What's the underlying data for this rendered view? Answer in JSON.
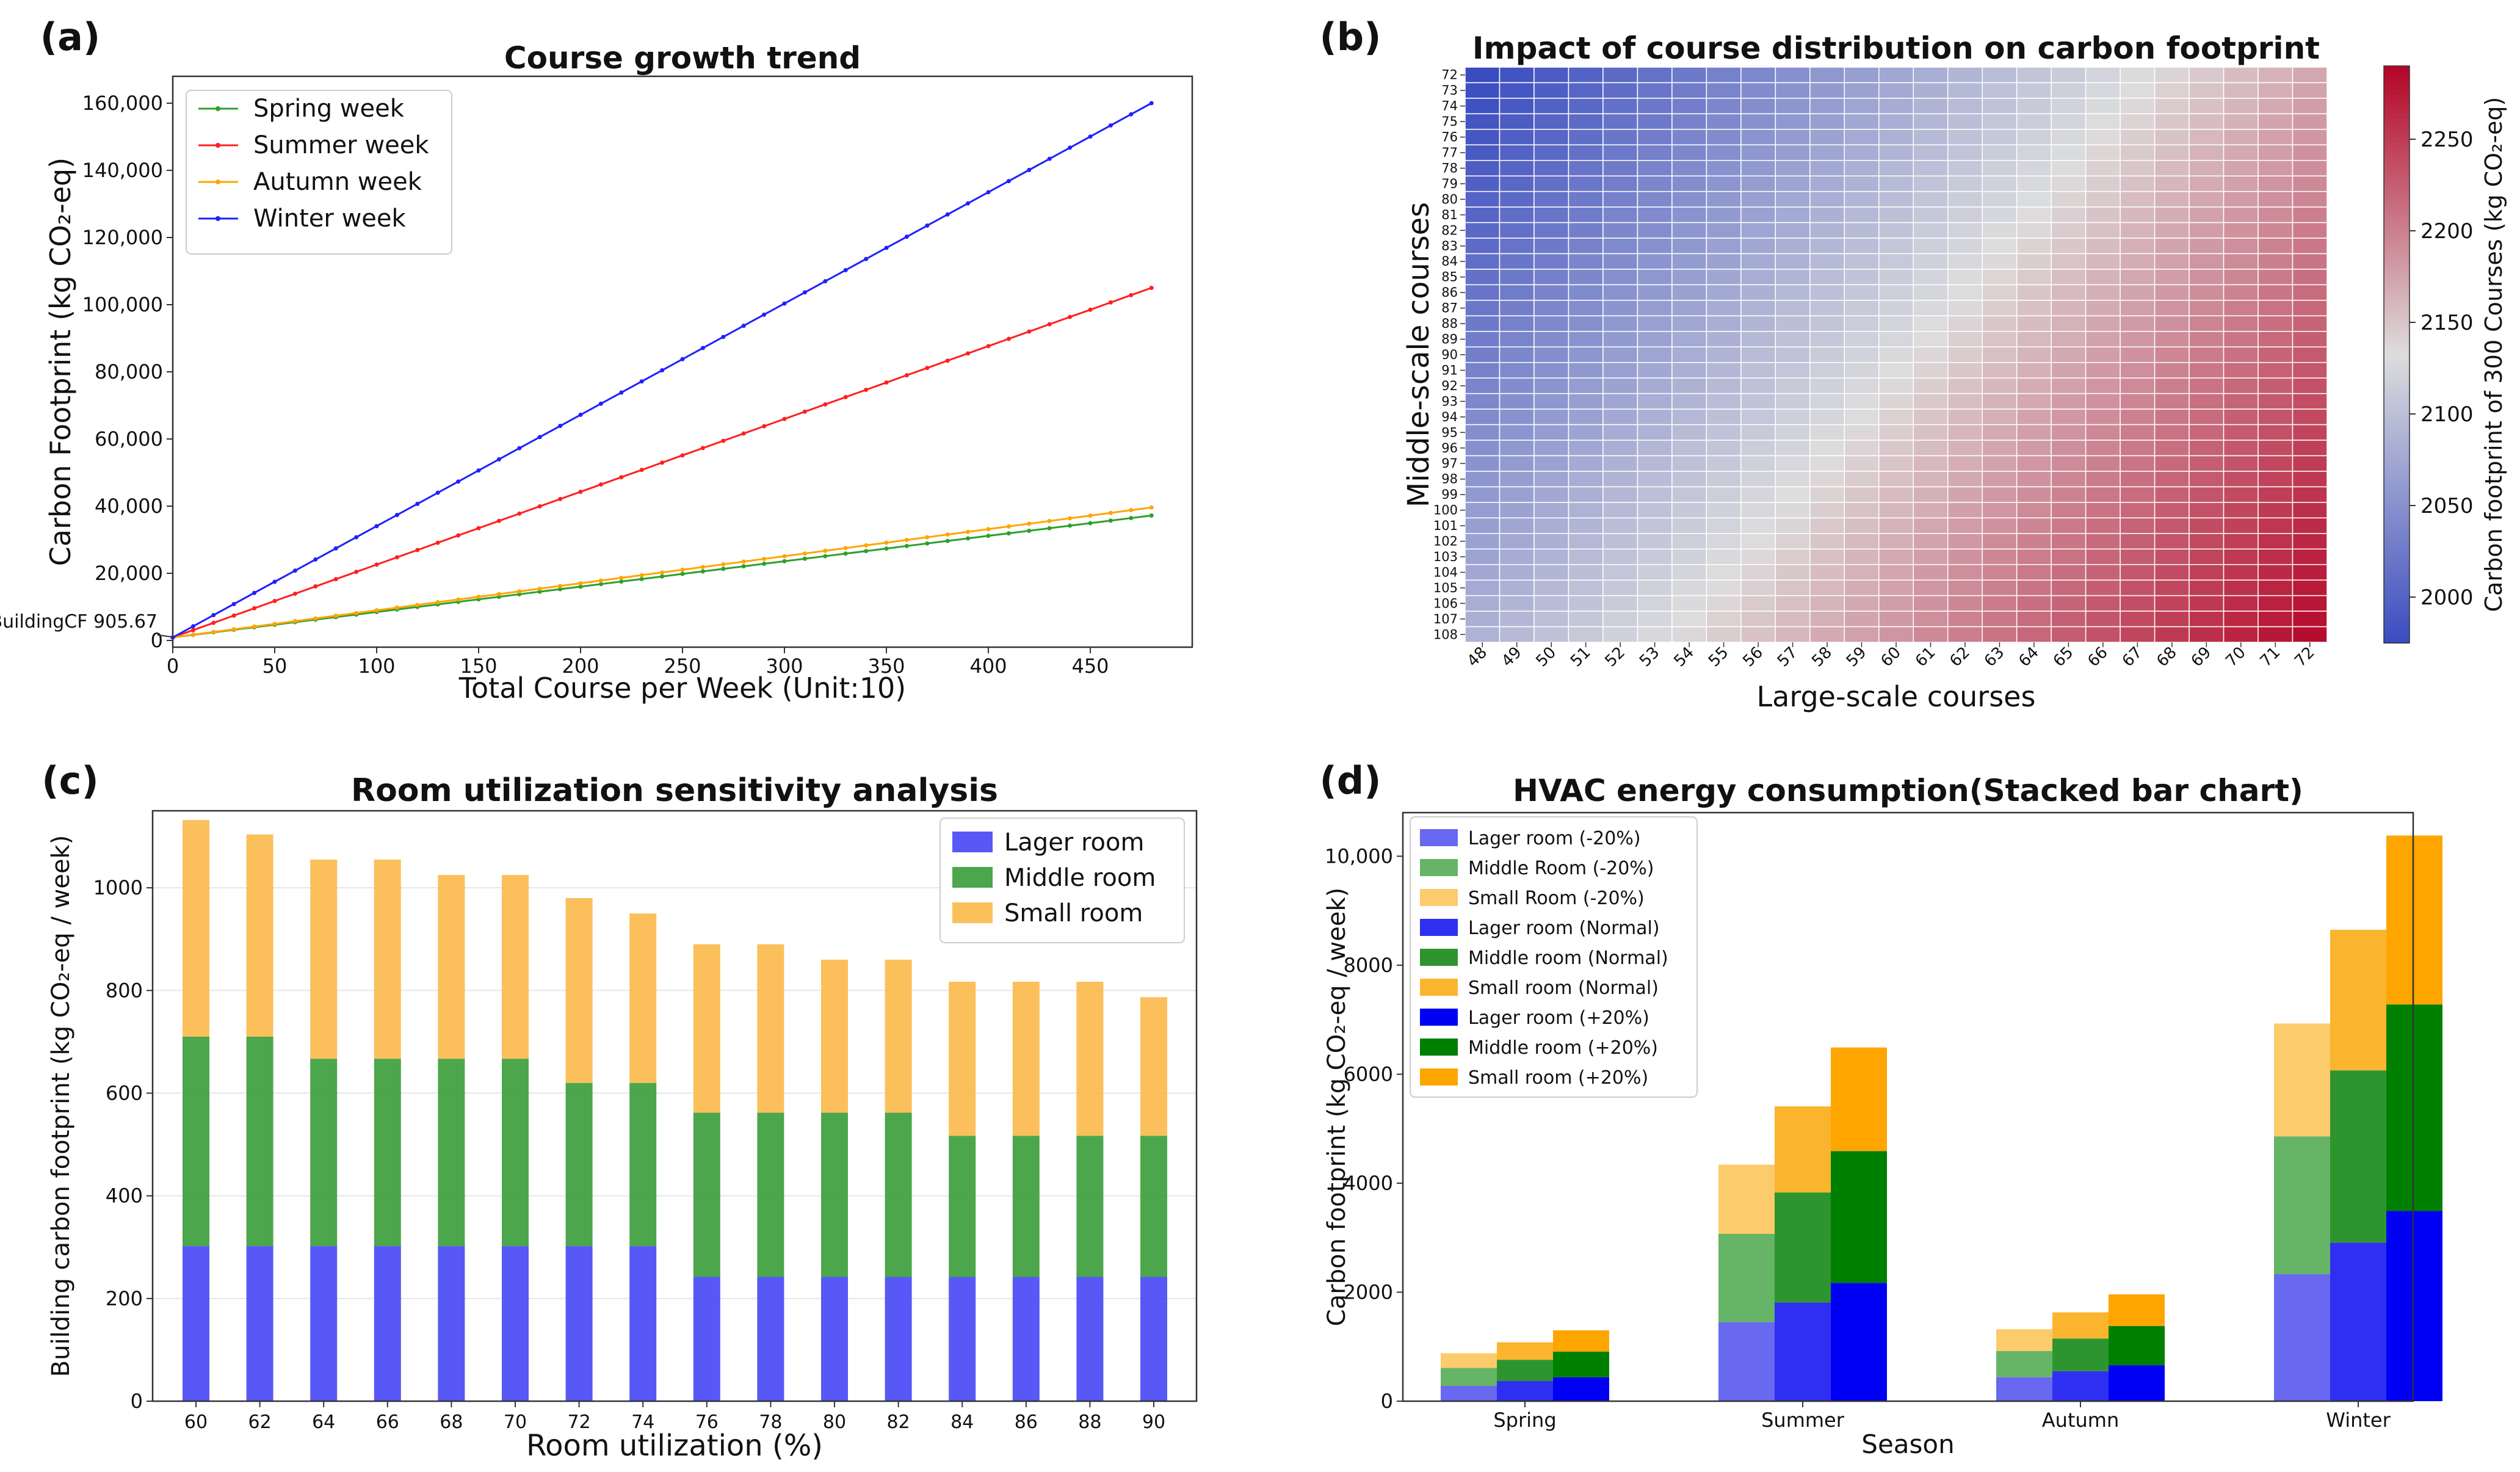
{
  "panels": {
    "a": {
      "letter": "(a)"
    },
    "b": {
      "letter": "(b)"
    },
    "c": {
      "letter": "(c)"
    },
    "d": {
      "letter": "(d)"
    }
  },
  "chart_data": [
    {
      "id": "a",
      "type": "line",
      "title": "Course growth trend",
      "xlabel": "Total Course per Week (Unit:10)",
      "ylabel": "Carbon Footprint (kg CO₂-eq)",
      "xlim": [
        0,
        500
      ],
      "ylim": [
        -2000,
        168000
      ],
      "xticks": [
        0,
        50,
        100,
        150,
        200,
        250,
        300,
        350,
        400,
        450
      ],
      "yticks": [
        0,
        20000,
        40000,
        60000,
        80000,
        100000,
        120000,
        140000,
        160000
      ],
      "ytick_labels": [
        "0",
        "20,000",
        "40,000",
        "60,000",
        "80,000",
        "100,000",
        "120,000",
        "140,000",
        "160,000"
      ],
      "x_start": 0,
      "x_end": 480,
      "x_step": 10,
      "legend_position": "top-left",
      "series": [
        {
          "name": "Spring week",
          "color": "#2ca02c",
          "start": 905.67,
          "end": 37200
        },
        {
          "name": "Summer week",
          "color": "#ff2020",
          "start": 905.67,
          "end": 105000
        },
        {
          "name": "Autumn week",
          "color": "#ffa500",
          "start": 905.67,
          "end": 39600
        },
        {
          "name": "Winter week",
          "color": "#2020ff",
          "start": 905.67,
          "end": 160000
        }
      ],
      "annotation": {
        "text": "BuildingCF 905.67",
        "x": 0,
        "y": 905.67
      }
    },
    {
      "id": "b",
      "type": "heatmap",
      "title": "Impact of course distribution on carbon footprint",
      "xlabel": "Large-scale courses",
      "ylabel": "Middle-scale courses",
      "x_values": [
        48,
        49,
        50,
        51,
        52,
        53,
        54,
        55,
        56,
        57,
        58,
        59,
        60,
        61,
        62,
        63,
        64,
        65,
        66,
        67,
        68,
        69,
        70,
        71,
        72
      ],
      "y_values": [
        72,
        73,
        74,
        75,
        76,
        77,
        78,
        79,
        80,
        81,
        82,
        83,
        84,
        85,
        86,
        87,
        88,
        89,
        90,
        91,
        92,
        93,
        94,
        95,
        96,
        97,
        98,
        99,
        100,
        101,
        102,
        103,
        104,
        105,
        106,
        107,
        108
      ],
      "value_model": {
        "base": 1975,
        "per_large": 8.2,
        "per_middle": 3.1
      },
      "colorbar": {
        "label": "Carbon footprint of 300 Courses (kg CO₂-eq)",
        "min": 1975,
        "max": 2290,
        "ticks": [
          2000,
          2050,
          2100,
          2150,
          2200,
          2250
        ]
      }
    },
    {
      "id": "c",
      "type": "bar",
      "stacked": true,
      "title": "Room utilization sensitivity analysis",
      "xlabel": "Room utilization (%)",
      "ylabel": "Building carbon footprint (kg CO₂-eq / week)",
      "ylim": [
        0,
        1150
      ],
      "yticks": [
        0,
        200,
        400,
        600,
        800,
        1000
      ],
      "categories": [
        "60",
        "62",
        "64",
        "66",
        "68",
        "70",
        "72",
        "74",
        "76",
        "78",
        "80",
        "82",
        "84",
        "86",
        "88",
        "90"
      ],
      "legend_position": "top-right",
      "series": [
        {
          "name": "Lager room",
          "color": "#4a4af5",
          "values": [
            302,
            302,
            302,
            302,
            302,
            302,
            302,
            302,
            242,
            242,
            242,
            242,
            242,
            242,
            242,
            242
          ]
        },
        {
          "name": "Middle room",
          "color": "#3d9e3d",
          "values": [
            408,
            408,
            365,
            365,
            365,
            365,
            318,
            318,
            320,
            320,
            320,
            320,
            275,
            275,
            275,
            275
          ]
        },
        {
          "name": "Small room",
          "color": "#fbbb4d",
          "values": [
            422,
            394,
            388,
            388,
            358,
            358,
            360,
            330,
            328,
            328,
            298,
            298,
            300,
            300,
            300,
            270
          ]
        }
      ]
    },
    {
      "id": "d",
      "type": "bar",
      "stacked": true,
      "grouped": true,
      "title": "HVAC energy consumption(Stacked bar chart)",
      "xlabel": "Season",
      "ylabel": "Carbon footprint (kg CO₂-eq / week)",
      "ylim": [
        0,
        10800
      ],
      "yticks": [
        0,
        2000,
        4000,
        6000,
        8000,
        10000
      ],
      "ytick_labels": [
        "0",
        "2000",
        "4000",
        "6000",
        "8000",
        "10,000"
      ],
      "categories": [
        "Spring",
        "Summer",
        "Autumn",
        "Winter"
      ],
      "groups": [
        "-20%",
        "Normal",
        "+20%"
      ],
      "legend_position": "top-left",
      "legend": [
        {
          "name": "Lager room (-20%)",
          "color": "#6868f0"
        },
        {
          "name": "Middle Room (-20%)",
          "color": "#66b466"
        },
        {
          "name": "Small Room (-20%)",
          "color": "#fccb6c"
        },
        {
          "name": "Lager room (Normal)",
          "color": "#2f2ff2"
        },
        {
          "name": "Middle room (Normal)",
          "color": "#2e952e"
        },
        {
          "name": "Small room (Normal)",
          "color": "#fbb42e"
        },
        {
          "name": "Lager room (+20%)",
          "color": "#0000f5"
        },
        {
          "name": "Middle room (+20%)",
          "color": "#008000"
        },
        {
          "name": "Small room (+20%)",
          "color": "#ffa500"
        }
      ],
      "series": [
        {
          "name": "Lager room (-20%)",
          "group": 0,
          "values": [
            280,
            1450,
            440,
            2330
          ]
        },
        {
          "name": "Middle Room (-20%)",
          "group": 0,
          "values": [
            330,
            1620,
            480,
            2530
          ]
        },
        {
          "name": "Small Room (-20%)",
          "group": 0,
          "values": [
            270,
            1270,
            400,
            2070
          ]
        },
        {
          "name": "Lager room (Normal)",
          "group": 1,
          "values": [
            370,
            1810,
            550,
            2910
          ]
        },
        {
          "name": "Middle room (Normal)",
          "group": 1,
          "values": [
            390,
            2020,
            600,
            3160
          ]
        },
        {
          "name": "Small room (Normal)",
          "group": 1,
          "values": [
            320,
            1580,
            480,
            2580
          ]
        },
        {
          "name": "Lager room (+20%)",
          "group": 2,
          "values": [
            440,
            2170,
            660,
            3490
          ]
        },
        {
          "name": "Middle room (+20%)",
          "group": 2,
          "values": [
            470,
            2420,
            720,
            3790
          ]
        },
        {
          "name": "Small room (+20%)",
          "group": 2,
          "values": [
            390,
            1900,
            580,
            3100
          ]
        }
      ]
    }
  ]
}
